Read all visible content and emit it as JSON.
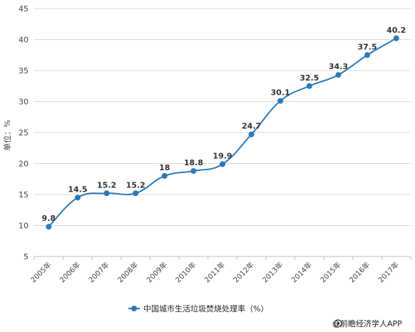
{
  "chart_data": {
    "type": "line",
    "categories": [
      "2005年",
      "2006年",
      "2007年",
      "2008年",
      "2009年",
      "2010年",
      "2011年",
      "2012年",
      "2013年",
      "2014年",
      "2015年",
      "2016年",
      "2017年"
    ],
    "series": [
      {
        "name": "中国城市生活垃圾焚烧处理率（%）",
        "values": [
          9.8,
          14.5,
          15.2,
          15.2,
          18,
          18.8,
          19.9,
          24.7,
          30.1,
          32.5,
          34.3,
          37.5,
          40.2
        ],
        "labels": [
          "9.8",
          "14.5",
          "15.2",
          "15.2",
          "18",
          "18.8",
          "19.9",
          "24.7",
          "30.1",
          "32.5",
          "34.3",
          "37.5",
          "40.2"
        ],
        "color": "#2a7ab9"
      }
    ],
    "ylabel": "单位：%",
    "ylim": [
      5,
      45
    ],
    "yticks": [
      5,
      10,
      15,
      20,
      25,
      30,
      35,
      40,
      45
    ],
    "grid": "horizontal",
    "legend_position": "bottom-center"
  },
  "credit": {
    "text": "@前瞻经济学人APP"
  },
  "colors": {
    "grid": "#d9d9d9",
    "axis": "#bfbfbf",
    "line": "#2a7ab9"
  }
}
